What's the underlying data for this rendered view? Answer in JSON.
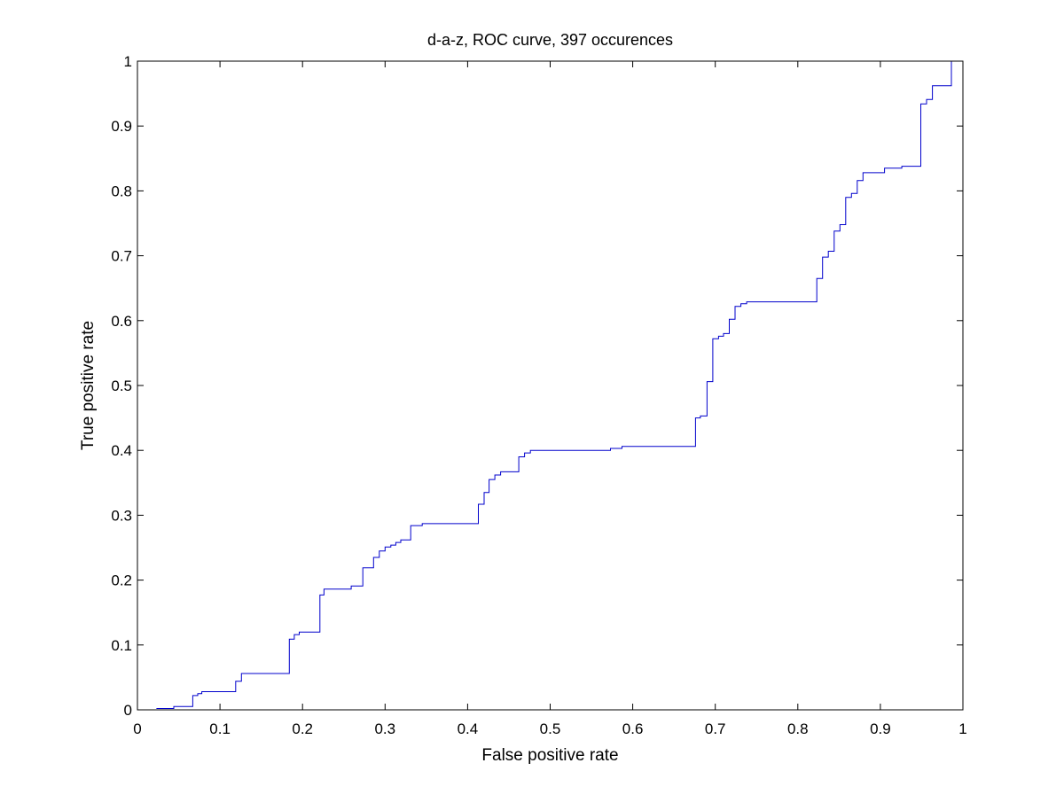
{
  "chart_data": {
    "type": "line",
    "title": "d-a-z, ROC curve, 397 occurences",
    "xlabel": "False positive rate",
    "ylabel": "True positive rate",
    "xlim": [
      0,
      1
    ],
    "ylim": [
      0,
      1
    ],
    "x_ticks": [
      0,
      0.1,
      0.2,
      0.3,
      0.4,
      0.5,
      0.6,
      0.7,
      0.8,
      0.9,
      1
    ],
    "y_ticks": [
      0,
      0.1,
      0.2,
      0.3,
      0.4,
      0.5,
      0.6,
      0.7,
      0.8,
      0.9,
      1
    ],
    "x_tick_labels": [
      "0",
      "0.1",
      "0.2",
      "0.3",
      "0.4",
      "0.5",
      "0.6",
      "0.7",
      "0.8",
      "0.9",
      "1"
    ],
    "y_tick_labels": [
      "0",
      "0.1",
      "0.2",
      "0.3",
      "0.4",
      "0.5",
      "0.6",
      "0.7",
      "0.8",
      "0.9",
      "1"
    ],
    "grid": false,
    "legend": "none",
    "series": [
      {
        "color": "#0000cc",
        "style": "step",
        "points": [
          [
            0.023,
            0.002
          ],
          [
            0.044,
            0.002
          ],
          [
            0.044,
            0.005
          ],
          [
            0.067,
            0.005
          ],
          [
            0.067,
            0.022
          ],
          [
            0.073,
            0.022
          ],
          [
            0.073,
            0.025
          ],
          [
            0.078,
            0.025
          ],
          [
            0.078,
            0.028
          ],
          [
            0.119,
            0.028
          ],
          [
            0.119,
            0.044
          ],
          [
            0.126,
            0.044
          ],
          [
            0.126,
            0.056
          ],
          [
            0.184,
            0.056
          ],
          [
            0.184,
            0.109
          ],
          [
            0.19,
            0.109
          ],
          [
            0.19,
            0.116
          ],
          [
            0.196,
            0.116
          ],
          [
            0.196,
            0.12
          ],
          [
            0.221,
            0.12
          ],
          [
            0.221,
            0.177
          ],
          [
            0.226,
            0.177
          ],
          [
            0.226,
            0.186
          ],
          [
            0.259,
            0.186
          ],
          [
            0.259,
            0.191
          ],
          [
            0.273,
            0.191
          ],
          [
            0.273,
            0.219
          ],
          [
            0.286,
            0.219
          ],
          [
            0.286,
            0.235
          ],
          [
            0.293,
            0.235
          ],
          [
            0.293,
            0.245
          ],
          [
            0.3,
            0.245
          ],
          [
            0.3,
            0.251
          ],
          [
            0.307,
            0.251
          ],
          [
            0.307,
            0.254
          ],
          [
            0.313,
            0.254
          ],
          [
            0.313,
            0.258
          ],
          [
            0.319,
            0.258
          ],
          [
            0.319,
            0.262
          ],
          [
            0.331,
            0.262
          ],
          [
            0.331,
            0.284
          ],
          [
            0.345,
            0.284
          ],
          [
            0.345,
            0.287
          ],
          [
            0.413,
            0.287
          ],
          [
            0.413,
            0.317
          ],
          [
            0.42,
            0.317
          ],
          [
            0.42,
            0.335
          ],
          [
            0.426,
            0.335
          ],
          [
            0.426,
            0.355
          ],
          [
            0.433,
            0.355
          ],
          [
            0.433,
            0.362
          ],
          [
            0.44,
            0.362
          ],
          [
            0.44,
            0.367
          ],
          [
            0.462,
            0.367
          ],
          [
            0.462,
            0.39
          ],
          [
            0.469,
            0.39
          ],
          [
            0.469,
            0.396
          ],
          [
            0.476,
            0.396
          ],
          [
            0.476,
            0.4
          ],
          [
            0.573,
            0.4
          ],
          [
            0.573,
            0.403
          ],
          [
            0.587,
            0.403
          ],
          [
            0.587,
            0.406
          ],
          [
            0.676,
            0.406
          ],
          [
            0.676,
            0.45
          ],
          [
            0.682,
            0.45
          ],
          [
            0.682,
            0.453
          ],
          [
            0.69,
            0.453
          ],
          [
            0.69,
            0.506
          ],
          [
            0.697,
            0.506
          ],
          [
            0.697,
            0.572
          ],
          [
            0.704,
            0.572
          ],
          [
            0.704,
            0.576
          ],
          [
            0.71,
            0.576
          ],
          [
            0.71,
            0.58
          ],
          [
            0.717,
            0.58
          ],
          [
            0.717,
            0.602
          ],
          [
            0.724,
            0.602
          ],
          [
            0.724,
            0.622
          ],
          [
            0.731,
            0.622
          ],
          [
            0.731,
            0.626
          ],
          [
            0.738,
            0.626
          ],
          [
            0.738,
            0.629
          ],
          [
            0.823,
            0.629
          ],
          [
            0.823,
            0.665
          ],
          [
            0.83,
            0.665
          ],
          [
            0.83,
            0.698
          ],
          [
            0.837,
            0.698
          ],
          [
            0.837,
            0.707
          ],
          [
            0.844,
            0.707
          ],
          [
            0.844,
            0.738
          ],
          [
            0.851,
            0.738
          ],
          [
            0.851,
            0.748
          ],
          [
            0.858,
            0.748
          ],
          [
            0.858,
            0.79
          ],
          [
            0.865,
            0.79
          ],
          [
            0.865,
            0.796
          ],
          [
            0.872,
            0.796
          ],
          [
            0.872,
            0.816
          ],
          [
            0.879,
            0.816
          ],
          [
            0.879,
            0.828
          ],
          [
            0.905,
            0.828
          ],
          [
            0.905,
            0.835
          ],
          [
            0.926,
            0.835
          ],
          [
            0.926,
            0.838
          ],
          [
            0.949,
            0.838
          ],
          [
            0.949,
            0.934
          ],
          [
            0.956,
            0.934
          ],
          [
            0.956,
            0.941
          ],
          [
            0.963,
            0.941
          ],
          [
            0.963,
            0.962
          ],
          [
            0.986,
            0.962
          ],
          [
            0.986,
            1.0
          ],
          [
            1.0,
            1.0
          ]
        ]
      }
    ]
  }
}
